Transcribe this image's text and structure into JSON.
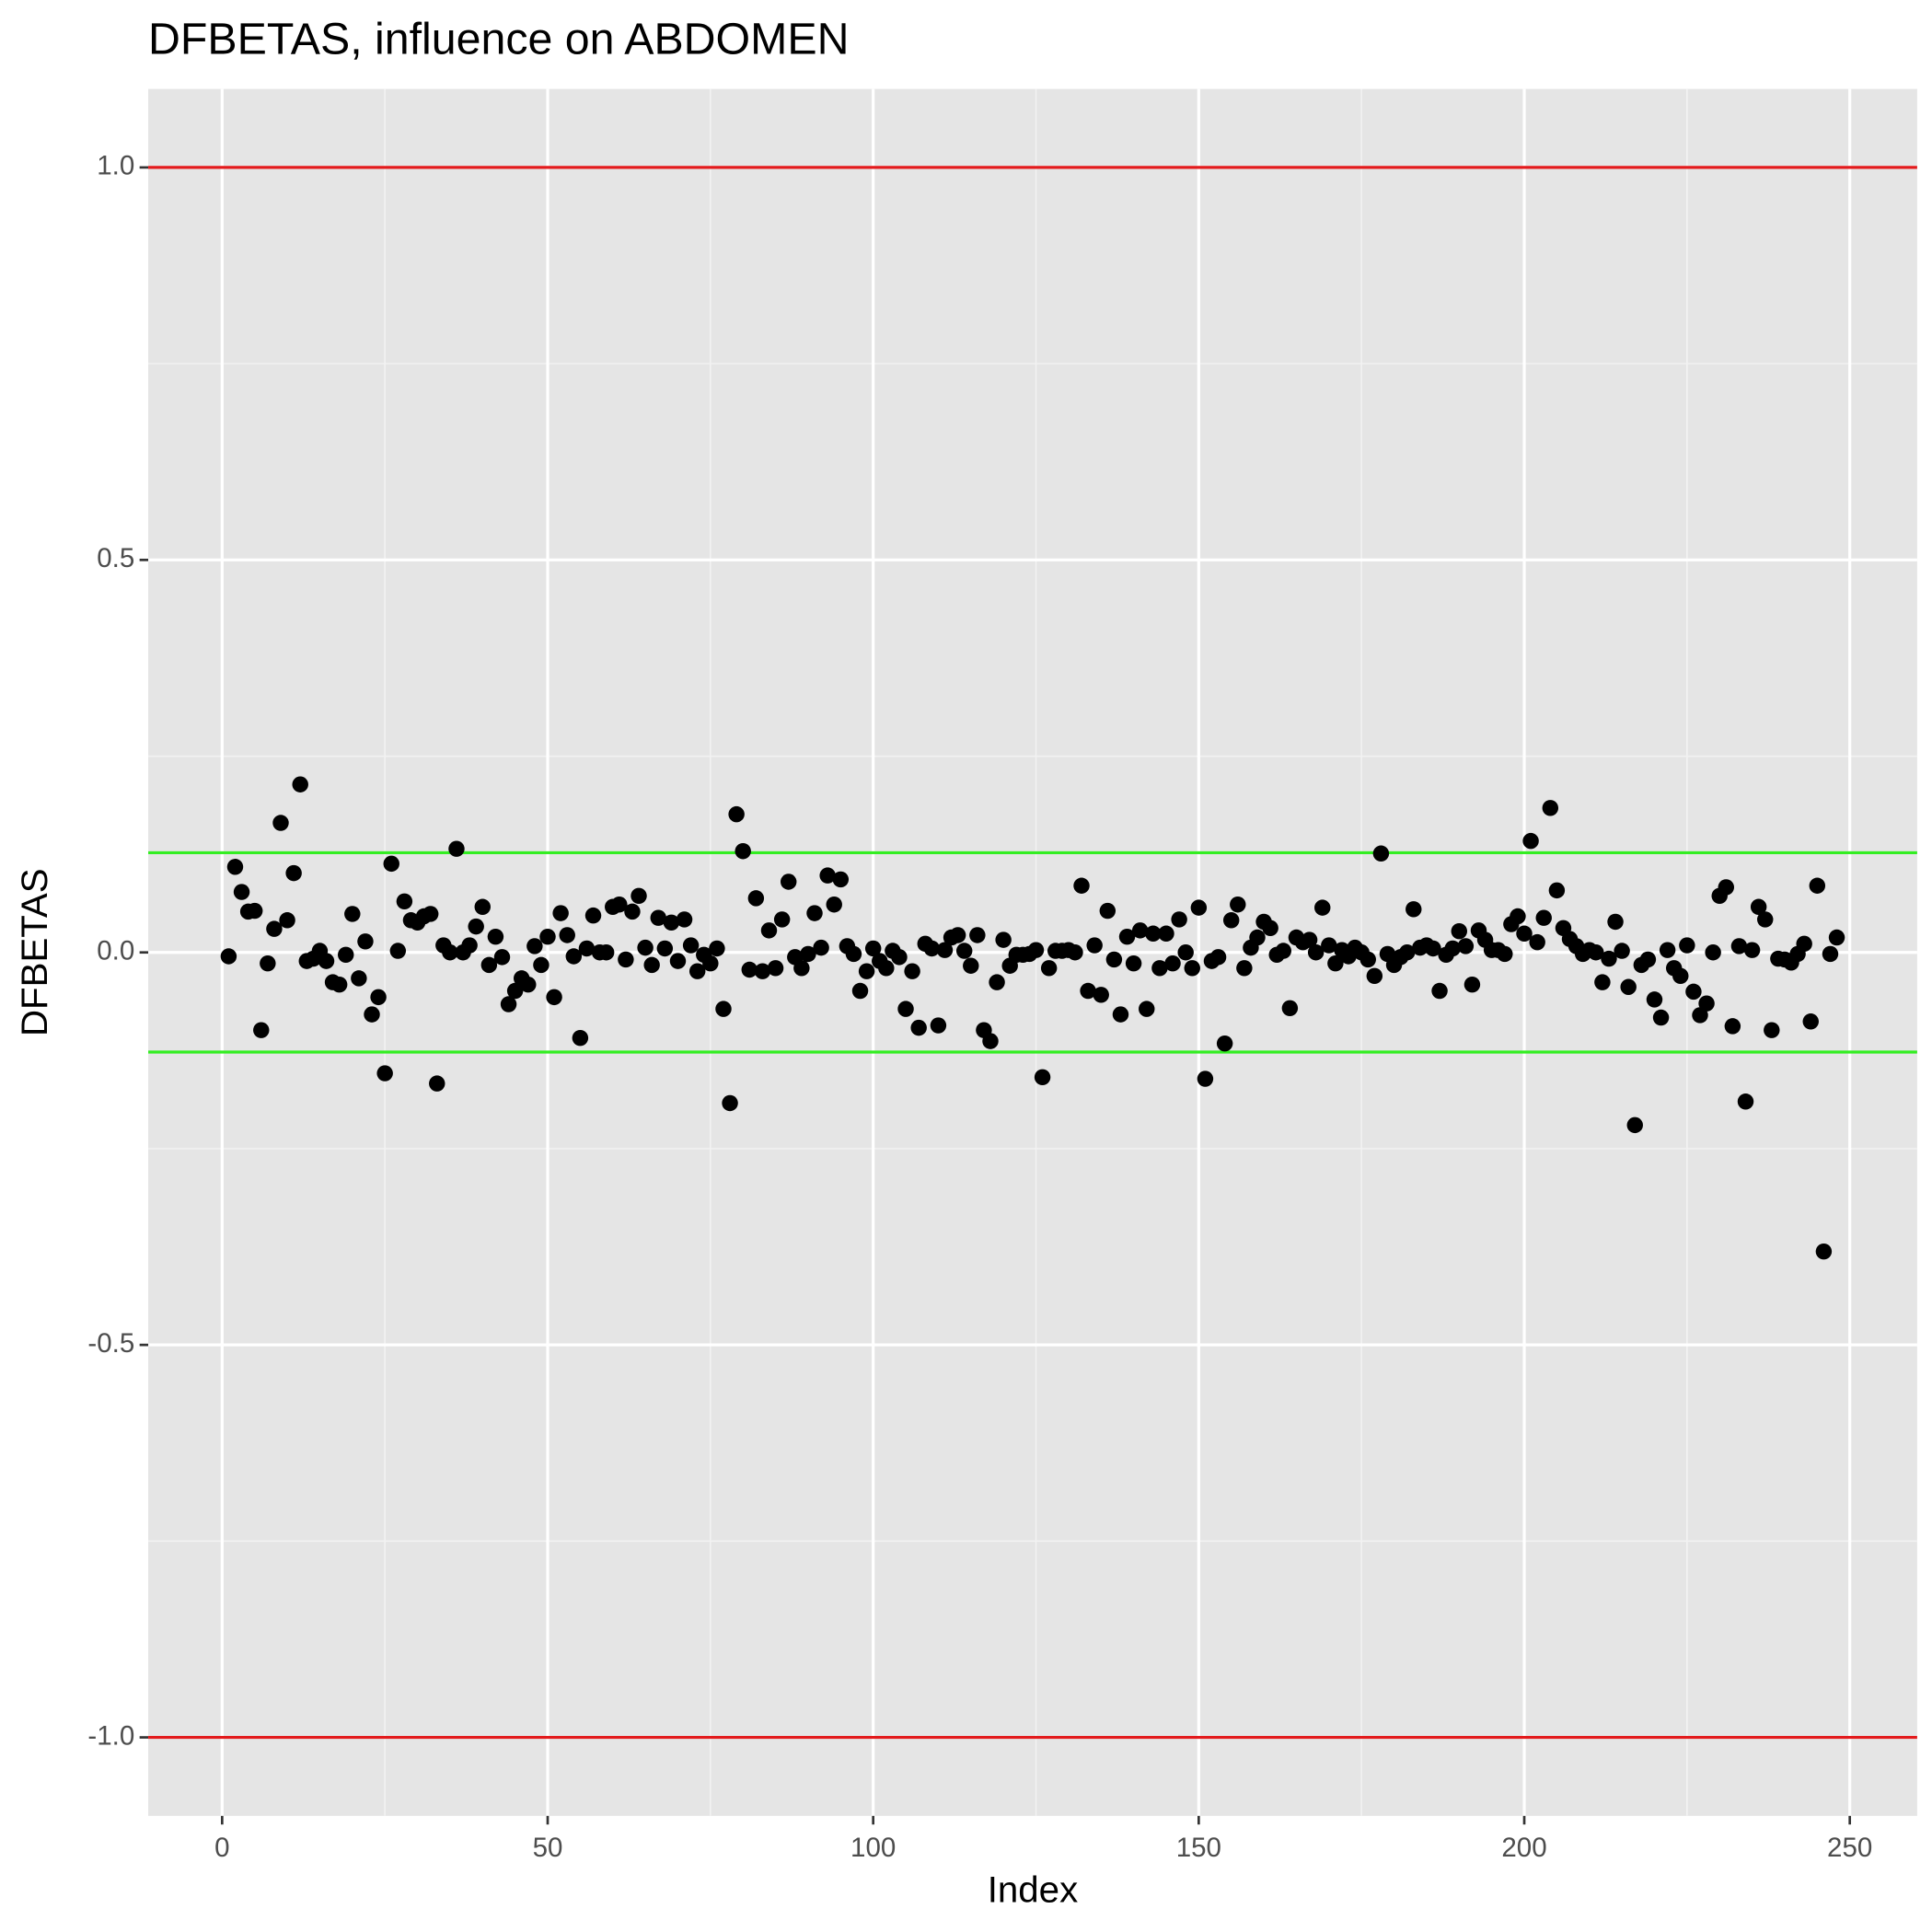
{
  "chart_data": {
    "type": "scatter",
    "title": "DFBETAS, influence on ABDOMEN",
    "x_label": "Index",
    "y_label": "DFBETAS",
    "xlim": [
      -11.35,
      260.35
    ],
    "ylim": [
      -1.1,
      1.1
    ],
    "xticks": [
      0,
      50,
      100,
      150,
      200,
      250
    ],
    "yticks": [
      {
        "value": -1,
        "label": "-1.0"
      },
      {
        "value": -0.5,
        "label": "-0.5"
      },
      {
        "value": 0,
        "label": "0.0"
      },
      {
        "value": 0.5,
        "label": "0.5"
      },
      {
        "value": 1,
        "label": "1.0"
      }
    ],
    "grid": true,
    "reference_lines": [
      {
        "y": 1,
        "color": "#e31a1c"
      },
      {
        "y": -1,
        "color": "#e31a1c"
      },
      {
        "y": 0.127,
        "color": "#33ee22"
      },
      {
        "y": -0.127,
        "color": "#33ee22"
      }
    ],
    "series": [
      {
        "color": "#000000",
        "x": [
          1,
          2,
          3,
          4,
          5,
          6,
          7,
          8,
          9,
          10,
          11,
          12,
          13,
          14,
          15,
          16,
          17,
          18,
          19,
          20,
          21,
          22,
          23,
          24,
          25,
          26,
          27,
          28,
          29,
          30,
          31,
          32,
          33,
          34,
          35,
          36,
          37,
          38,
          39,
          40,
          41,
          42,
          43,
          44,
          45,
          46,
          47,
          48,
          49,
          50,
          51,
          52,
          53,
          54,
          55,
          56,
          57,
          58,
          59,
          60,
          61,
          62,
          63,
          64,
          65,
          66,
          67,
          68,
          69,
          70,
          71,
          72,
          73,
          74,
          75,
          76,
          77,
          78,
          79,
          80,
          81,
          82,
          83,
          84,
          85,
          86,
          87,
          88,
          89,
          90,
          91,
          92,
          93,
          94,
          95,
          96,
          97,
          98,
          99,
          100,
          101,
          102,
          103,
          104,
          105,
          106,
          107,
          108,
          109,
          110,
          111,
          112,
          113,
          114,
          115,
          116,
          117,
          118,
          119,
          120,
          121,
          122,
          123,
          124,
          125,
          126,
          127,
          128,
          129,
          130,
          131,
          132,
          133,
          134,
          135,
          136,
          137,
          138,
          139,
          140,
          141,
          142,
          143,
          144,
          145,
          146,
          147,
          148,
          149,
          150,
          151,
          152,
          153,
          154,
          155,
          156,
          157,
          158,
          159,
          160,
          161,
          162,
          163,
          164,
          165,
          166,
          167,
          168,
          169,
          170,
          171,
          172,
          173,
          174,
          175,
          176,
          177,
          178,
          179,
          180,
          181,
          182,
          183,
          184,
          185,
          186,
          187,
          188,
          189,
          190,
          191,
          192,
          193,
          194,
          195,
          196,
          197,
          198,
          199,
          200,
          201,
          202,
          203,
          204,
          205,
          206,
          207,
          208,
          209,
          210,
          211,
          212,
          213,
          214,
          215,
          216,
          217,
          218,
          219,
          220,
          221,
          222,
          223,
          224,
          225,
          226,
          227,
          228,
          229,
          230,
          231,
          232,
          233,
          234,
          235,
          236,
          237,
          238,
          239,
          240,
          241,
          242,
          243,
          244,
          245,
          246,
          247,
          248
        ],
        "values": [
          -0.005,
          0.109,
          0.077,
          0.052,
          0.053,
          -0.099,
          -0.014,
          0.03,
          0.165,
          0.041,
          0.101,
          0.214,
          -0.011,
          -0.008,
          0.002,
          -0.011,
          -0.038,
          -0.041,
          -0.003,
          0.049,
          -0.033,
          0.014,
          -0.079,
          -0.057,
          -0.154,
          0.113,
          0.002,
          0.065,
          0.041,
          0.038,
          0.046,
          0.049,
          -0.167,
          0.009,
          0.0,
          0.132,
          0.0,
          0.009,
          0.033,
          0.058,
          -0.016,
          0.02,
          -0.006,
          -0.066,
          -0.049,
          -0.033,
          -0.041,
          0.008,
          -0.016,
          0.02,
          -0.057,
          0.05,
          0.022,
          -0.005,
          -0.109,
          0.005,
          0.047,
          0.0,
          0.0,
          0.058,
          0.061,
          -0.009,
          0.052,
          0.072,
          0.006,
          -0.016,
          0.044,
          0.005,
          0.038,
          -0.011,
          0.042,
          0.009,
          -0.024,
          -0.003,
          -0.014,
          0.005,
          -0.072,
          -0.192,
          0.176,
          0.129,
          -0.022,
          0.069,
          -0.024,
          0.028,
          -0.02,
          0.042,
          0.09,
          -0.006,
          -0.02,
          -0.002,
          0.05,
          0.006,
          0.098,
          0.061,
          0.093,
          0.008,
          -0.002,
          -0.049,
          -0.024,
          0.005,
          -0.011,
          -0.02,
          0.002,
          -0.006,
          -0.072,
          -0.024,
          -0.096,
          0.011,
          0.005,
          -0.093,
          0.003,
          0.019,
          0.022,
          0.002,
          -0.017,
          0.022,
          -0.099,
          -0.113,
          -0.038,
          0.016,
          -0.017,
          -0.003,
          -0.003,
          -0.002,
          0.003,
          -0.159,
          -0.02,
          0.002,
          0.002,
          0.003,
          0.0,
          0.085,
          -0.049,
          0.009,
          -0.054,
          0.053,
          -0.009,
          -0.079,
          0.02,
          -0.014,
          0.028,
          -0.072,
          0.024,
          -0.02,
          0.024,
          -0.014,
          0.042,
          0.0,
          -0.02,
          0.057,
          -0.161,
          -0.011,
          -0.006,
          -0.116,
          0.041,
          0.061,
          -0.02,
          0.006,
          0.019,
          0.039,
          0.031,
          -0.003,
          0.002,
          -0.071,
          0.019,
          0.013,
          0.016,
          0.0,
          0.057,
          0.009,
          -0.014,
          0.003,
          -0.005,
          0.006,
          0.0,
          -0.009,
          -0.03,
          0.126,
          -0.002,
          -0.016,
          -0.006,
          0.0,
          0.055,
          0.006,
          0.009,
          0.005,
          -0.049,
          -0.003,
          0.005,
          0.027,
          0.008,
          -0.041,
          0.028,
          0.016,
          0.003,
          0.003,
          -0.002,
          0.036,
          0.046,
          0.024,
          0.142,
          0.013,
          0.044,
          0.184,
          0.079,
          0.031,
          0.017,
          0.008,
          -0.002,
          0.003,
          0.0,
          -0.038,
          -0.008,
          0.039,
          0.002,
          -0.044,
          -0.22,
          -0.016,
          -0.009,
          -0.06,
          -0.083,
          0.003,
          -0.02,
          -0.03,
          0.009,
          -0.05,
          -0.08,
          -0.065,
          0.0,
          0.072,
          0.083,
          -0.094,
          0.008,
          -0.19,
          0.003,
          0.058,
          0.042,
          -0.099,
          -0.008,
          -0.009,
          -0.013,
          -0.002,
          0.011,
          -0.088,
          0.085,
          -0.381,
          -0.002,
          0.019
        ]
      }
    ]
  }
}
